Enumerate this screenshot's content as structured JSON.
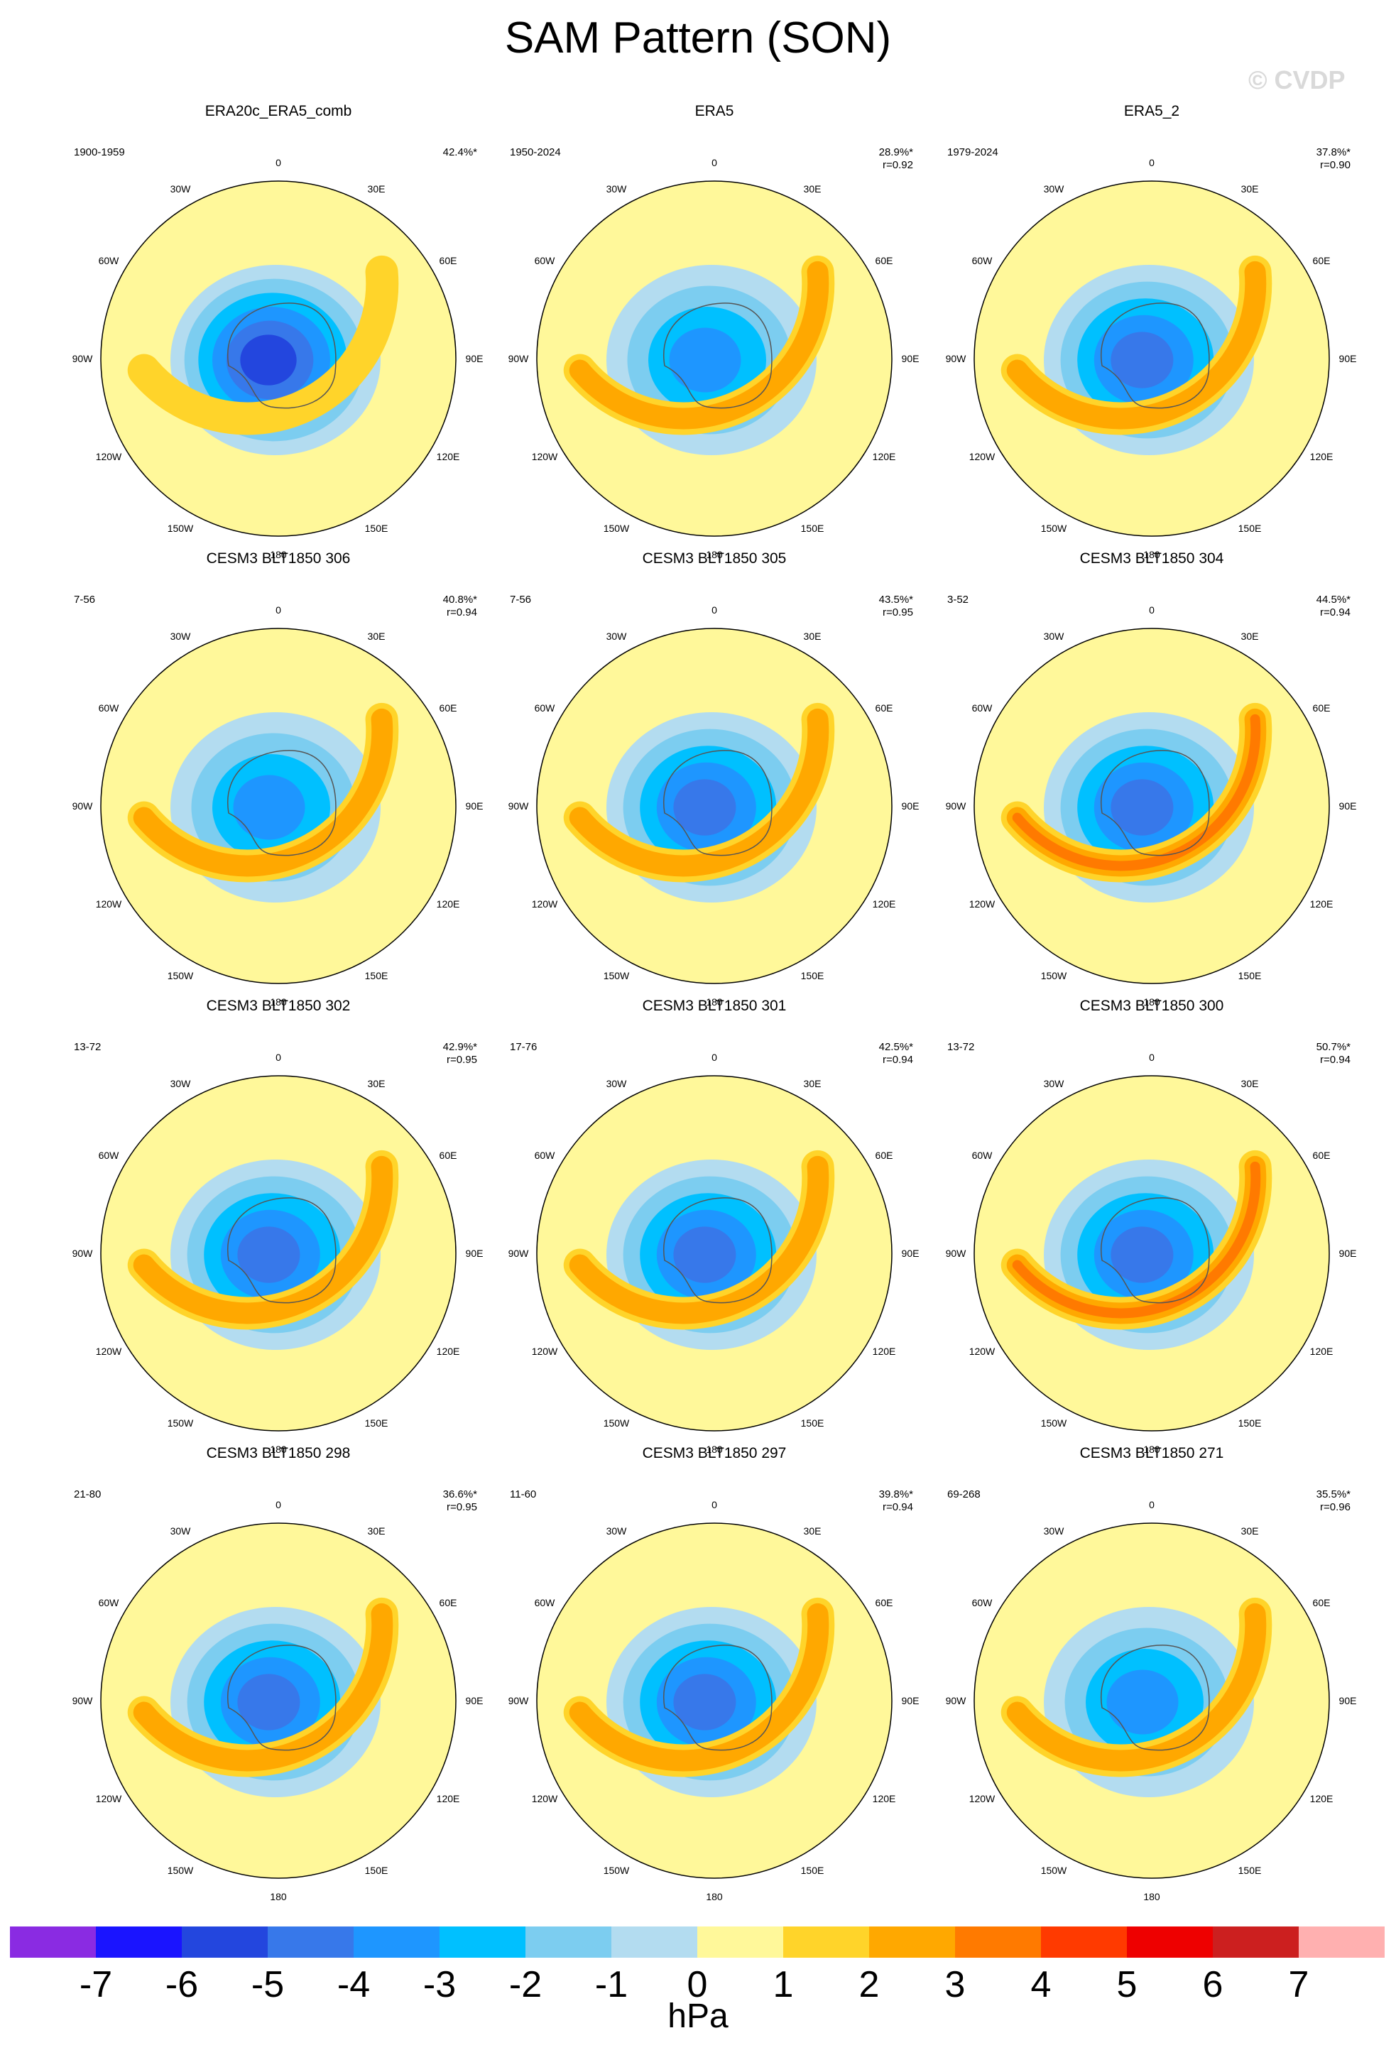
{
  "title": "SAM Pattern (SON)",
  "watermark": "© CVDP",
  "units": "hPa",
  "colorbar": {
    "colors": [
      "#8a2be2",
      "#1a14ff",
      "#2346de",
      "#3778ea",
      "#1e96ff",
      "#00c0ff",
      "#7ccdf0",
      "#b3dcf0",
      "#fff89a",
      "#ffd42a",
      "#ffa800",
      "#ff7a00",
      "#ff3a00",
      "#ee0000",
      "#cc1f1f",
      "#ffb0b0"
    ],
    "labels": [
      "-7",
      "-6",
      "-5",
      "-4",
      "-3",
      "-2",
      "-1",
      "0",
      "1",
      "2",
      "3",
      "4",
      "5",
      "6",
      "7"
    ]
  },
  "map_labels": {
    "lon_top": "0",
    "lon_bottom": "180",
    "lon_30e": "30E",
    "lon_60e": "60E",
    "lon_90e": "90E",
    "lon_120e": "120E",
    "lon_150e": "150E",
    "lon_30w": "30W",
    "lon_60w": "60W",
    "lon_90w": "90W",
    "lon_120w": "120W",
    "lon_150w": "150W"
  },
  "panels": [
    {
      "title": "ERA20c_ERA5_comb",
      "period": "1900-1959",
      "pct": "42.4%*",
      "r": "",
      "min": -5.5,
      "max": 1.3
    },
    {
      "title": "ERA5",
      "period": "1950-2024",
      "pct": "28.9%*",
      "r": "r=0.92",
      "min": -3.4,
      "max": 2.2
    },
    {
      "title": "ERA5_2",
      "period": "1979-2024",
      "pct": "37.8%*",
      "r": "r=0.90",
      "min": -4.3,
      "max": 2.5
    },
    {
      "title": "CESM3 BLT1850 306",
      "period": "7-56",
      "pct": "40.8%*",
      "r": "r=0.94",
      "min": -3.8,
      "max": 2.9
    },
    {
      "title": "CESM3 BLT1850 305",
      "period": "7-56",
      "pct": "43.5%*",
      "r": "r=0.95",
      "min": -4.3,
      "max": 2.6
    },
    {
      "title": "CESM3 BLT1850 304",
      "period": "3-52",
      "pct": "44.5%*",
      "r": "r=0.94",
      "min": -4.8,
      "max": 3.0
    },
    {
      "title": "CESM3 BLT1850 302",
      "period": "13-72",
      "pct": "42.9%*",
      "r": "r=0.95",
      "min": -4.6,
      "max": 2.8
    },
    {
      "title": "CESM3 BLT1850 301",
      "period": "17-76",
      "pct": "42.5%*",
      "r": "r=0.94",
      "min": -4.6,
      "max": 2.6
    },
    {
      "title": "CESM3 BLT1850 300",
      "period": "13-72",
      "pct": "50.7%*",
      "r": "r=0.94",
      "min": -4.6,
      "max": 3.4
    },
    {
      "title": "CESM3 BLT1850 298",
      "period": "21-80",
      "pct": "36.6%*",
      "r": "r=0.95",
      "min": -4.4,
      "max": 2.8
    },
    {
      "title": "CESM3 BLT1850 297",
      "period": "11-60",
      "pct": "39.8%*",
      "r": "r=0.94",
      "min": -4.8,
      "max": 2.9
    },
    {
      "title": "CESM3 BLT1850 271",
      "period": "69-268",
      "pct": "35.5%*",
      "r": "r=0.96",
      "min": -3.6,
      "max": 2.6
    }
  ]
}
